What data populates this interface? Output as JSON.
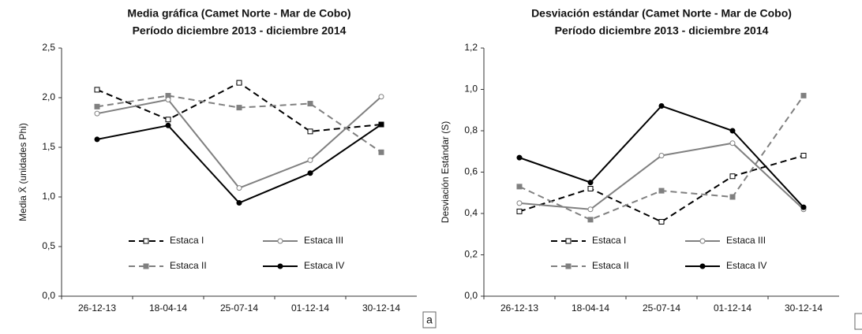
{
  "chart_data": [
    {
      "type": "line",
      "title": "Media gráfica (Camet Norte - Mar de Cobo)",
      "subtitle": "Período diciembre 2013 - diciembre 2014",
      "y_label": "Media X̄ (unidades Phi)",
      "annotation": "a",
      "categories": [
        "26-12-13",
        "18-04-14",
        "25-07-14",
        "01-12-14",
        "30-12-14"
      ],
      "ylim": [
        0,
        2.5
      ],
      "yticks": [
        {
          "value": 0,
          "label": "0,0"
        },
        {
          "value": 0.5,
          "label": "0,5"
        },
        {
          "value": 1,
          "label": "1,0"
        },
        {
          "value": 1.5,
          "label": "1,5"
        },
        {
          "value": 2,
          "label": "2,0"
        },
        {
          "value": 2.5,
          "label": "2,5"
        }
      ],
      "legend": "lower center",
      "series": [
        {
          "name": "Estaca I",
          "color": "#000000",
          "line_style": "dashed",
          "marker": "open-square",
          "values": [
            2.08,
            1.78,
            2.15,
            1.66,
            1.73
          ]
        },
        {
          "name": "Estaca II",
          "color": "#808080",
          "line_style": "dashed",
          "marker": "filled-square",
          "values": [
            1.91,
            2.02,
            1.9,
            1.94,
            1.45
          ]
        },
        {
          "name": "Estaca III",
          "color": "#808080",
          "line_style": "solid",
          "marker": "open-circle",
          "values": [
            1.84,
            1.98,
            1.09,
            1.37,
            2.01
          ]
        },
        {
          "name": "Estaca IV",
          "color": "#000000",
          "line_style": "solid",
          "marker": "filled-circle",
          "values": [
            1.58,
            1.72,
            0.94,
            1.24,
            1.73
          ]
        }
      ]
    },
    {
      "type": "line",
      "title": "Desviación estándar (Camet Norte - Mar de Cobo)",
      "subtitle": "Período diciembre 2013 - diciembre 2014",
      "y_label": "Desviación Estándar (S)",
      "categories": [
        "26-12-13",
        "18-04-14",
        "25-07-14",
        "01-12-14",
        "30-12-14"
      ],
      "ylim": [
        0,
        1.2
      ],
      "yticks": [
        {
          "value": 0,
          "label": "0,0"
        },
        {
          "value": 0.2,
          "label": "0,2"
        },
        {
          "value": 0.4,
          "label": "0,4"
        },
        {
          "value": 0.6,
          "label": "0,6"
        },
        {
          "value": 0.8,
          "label": "0,8"
        },
        {
          "value": 1,
          "label": "1,0"
        },
        {
          "value": 1.2,
          "label": "1,2"
        }
      ],
      "legend": "lower center",
      "series": [
        {
          "name": "Estaca I",
          "color": "#000000",
          "line_style": "dashed",
          "marker": "open-square",
          "values": [
            0.41,
            0.52,
            0.36,
            0.58,
            0.68
          ]
        },
        {
          "name": "Estaca II",
          "color": "#808080",
          "line_style": "dashed",
          "marker": "filled-square",
          "values": [
            0.53,
            0.37,
            0.51,
            0.48,
            0.97
          ]
        },
        {
          "name": "Estaca III",
          "color": "#808080",
          "line_style": "solid",
          "marker": "open-circle",
          "values": [
            0.45,
            0.42,
            0.68,
            0.74,
            0.42
          ]
        },
        {
          "name": "Estaca IV",
          "color": "#000000",
          "line_style": "solid",
          "marker": "filled-circle",
          "values": [
            0.67,
            0.55,
            0.92,
            0.8,
            0.43
          ]
        }
      ]
    }
  ]
}
